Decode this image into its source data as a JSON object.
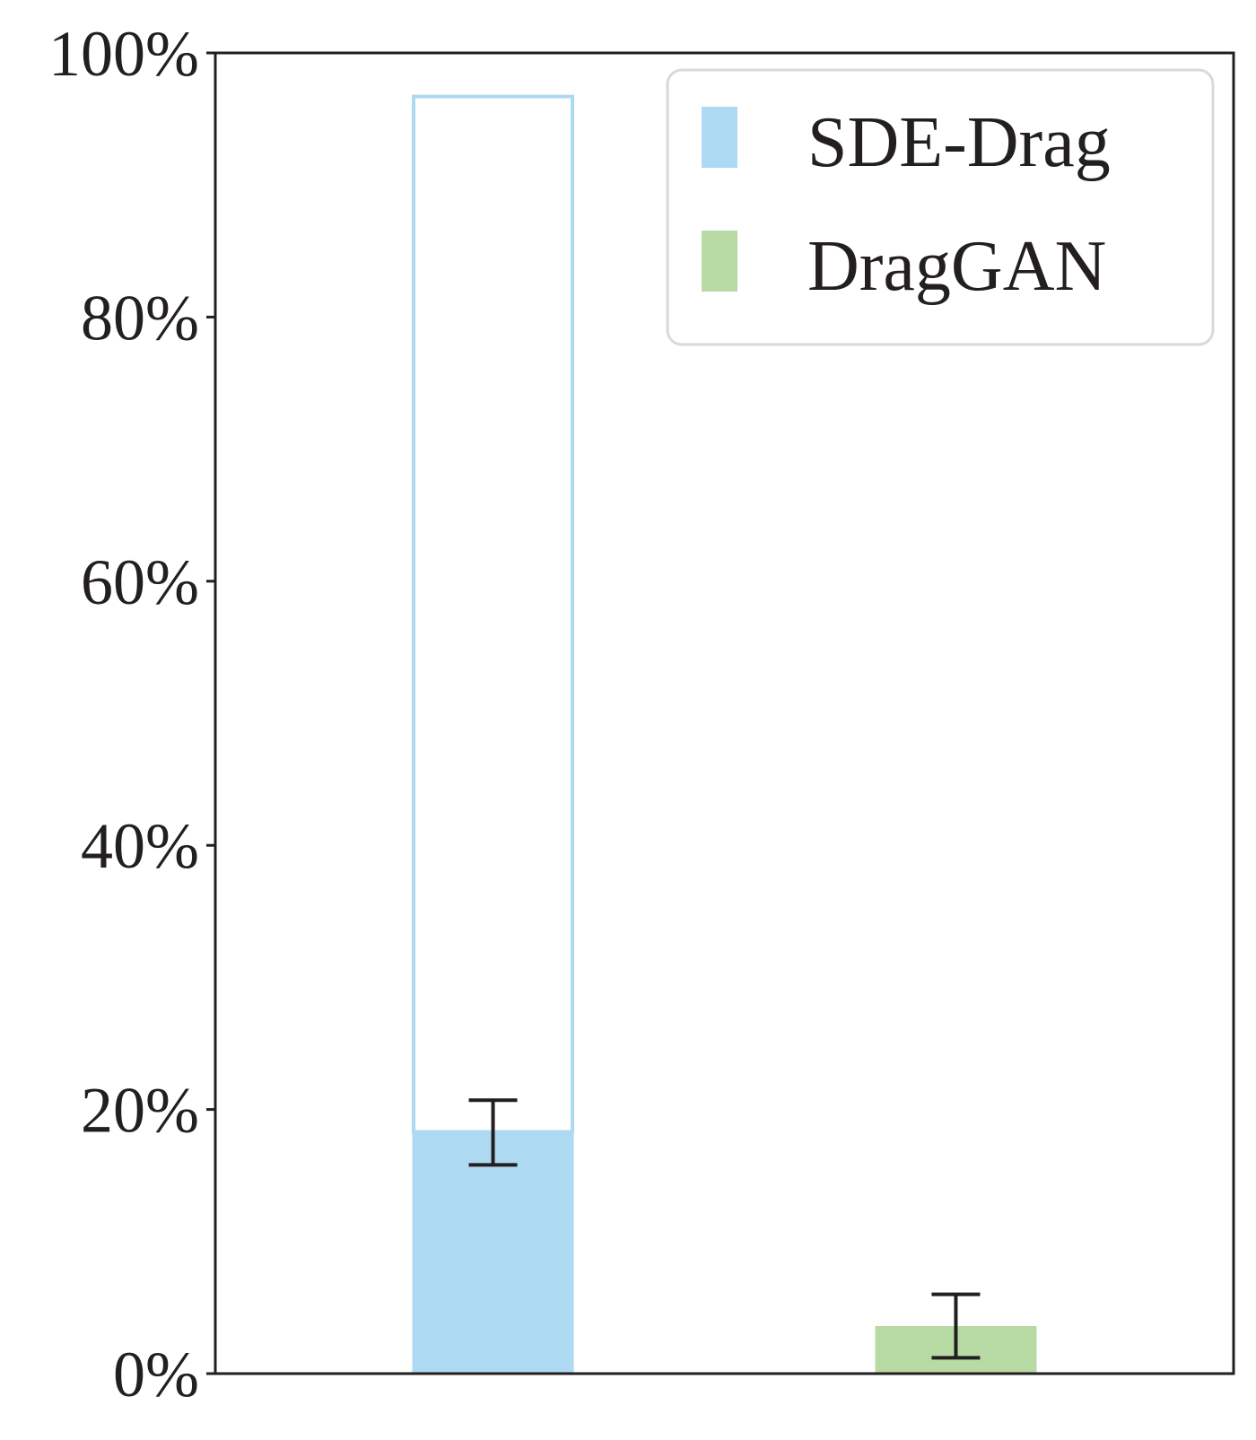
{
  "chart_data": {
    "type": "bar",
    "ylim": [
      0,
      100
    ],
    "y_ticks": [
      {
        "value": 0,
        "label": "0%"
      },
      {
        "value": 20,
        "label": "20%"
      },
      {
        "value": 40,
        "label": "40%"
      },
      {
        "value": 60,
        "label": "60%"
      },
      {
        "value": 80,
        "label": "80%"
      },
      {
        "value": 100,
        "label": "100%"
      }
    ],
    "grid": false,
    "legend_position": "top-right",
    "series": [
      {
        "name": "SDE-Drag",
        "color": "#aed9f2",
        "value": 18.3,
        "outline_value": 96.7,
        "error_low": 15.8,
        "error_high": 20.7
      },
      {
        "name": "DragGAN",
        "color": "#b8dba6",
        "value": 3.6,
        "error_low": 1.2,
        "error_high": 6.0
      }
    ]
  }
}
